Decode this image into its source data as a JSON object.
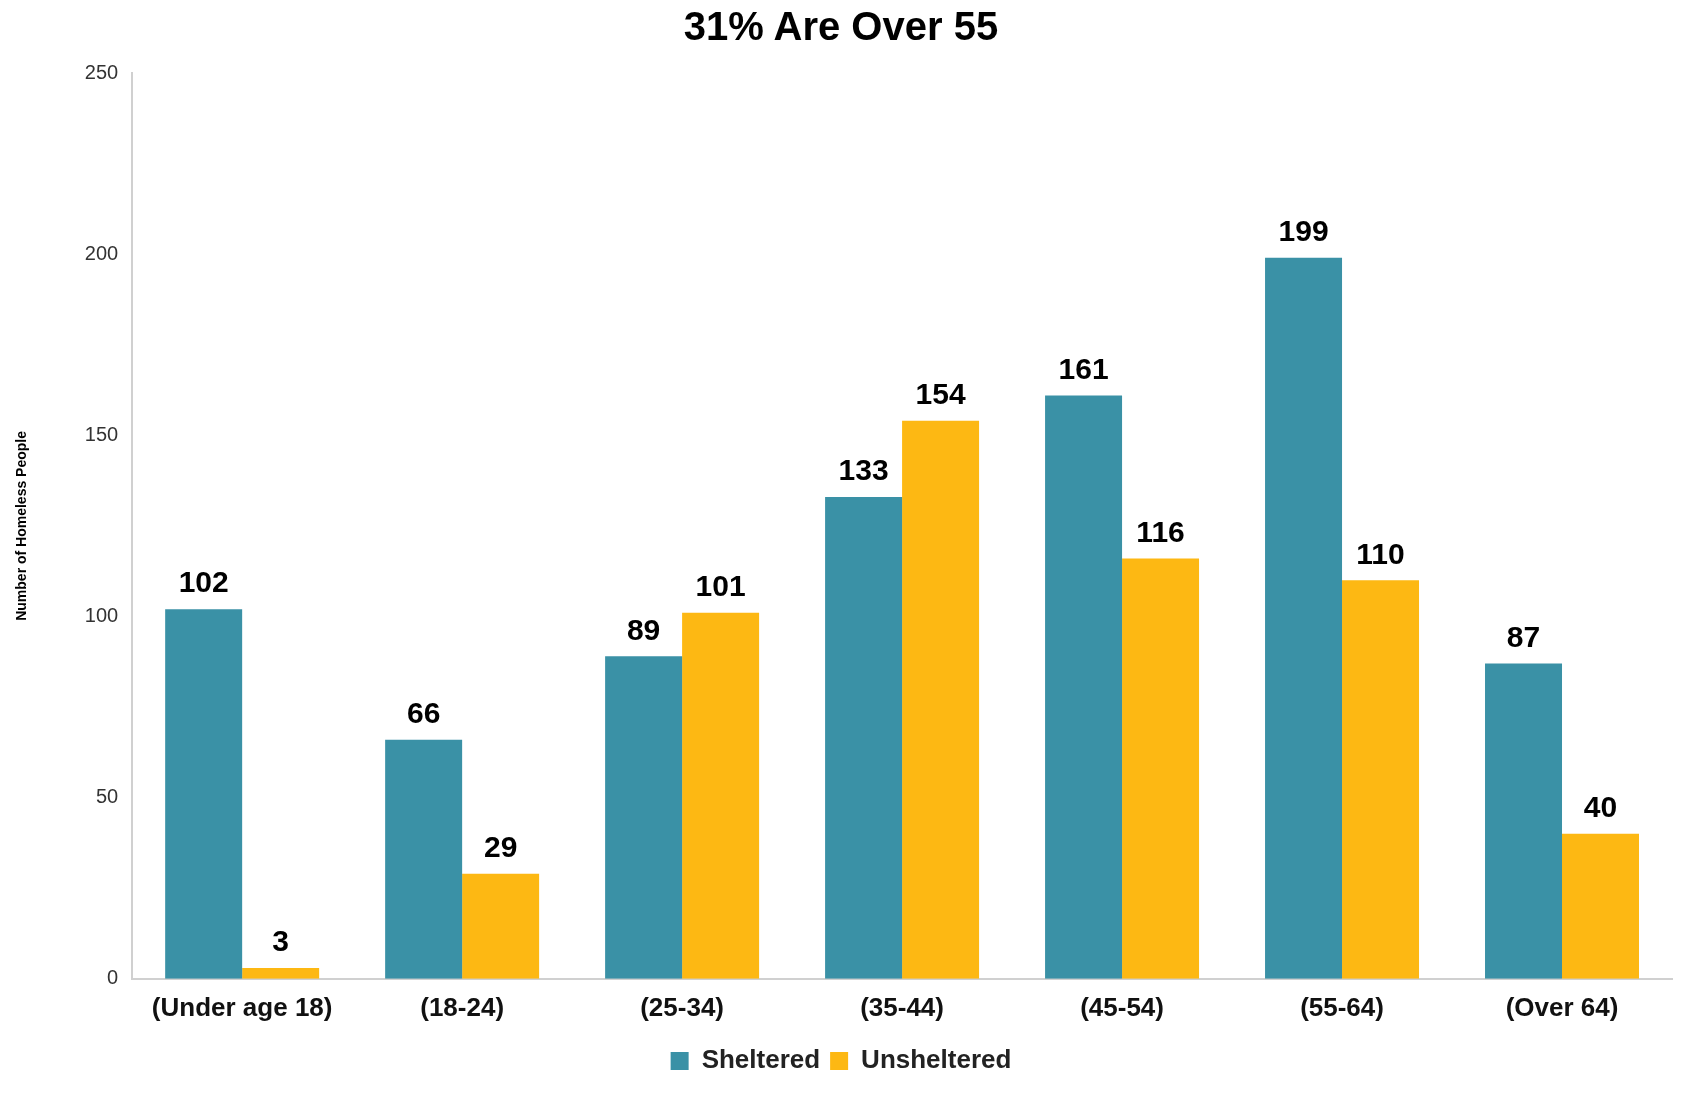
{
  "chart_data": {
    "type": "bar",
    "title": "31% Are Over 55",
    "ylabel": "Number of Homeless People",
    "categories": [
      "(Under age 18)",
      "(18-24)",
      "(25-34)",
      "(35-44)",
      "(45-54)",
      "(55-64)",
      "(Over 64)"
    ],
    "series": [
      {
        "name": "Sheltered",
        "color": "#3a91a6",
        "values": [
          102,
          66,
          89,
          133,
          161,
          199,
          87
        ]
      },
      {
        "name": "Unsheltered",
        "color": "#fdb813",
        "values": [
          3,
          29,
          101,
          154,
          116,
          110,
          40
        ]
      }
    ],
    "ylim": [
      0,
      250
    ],
    "yticks": [
      0,
      50,
      100,
      150,
      200,
      250
    ],
    "grid": false,
    "legend": "bottom",
    "data_labels": true
  }
}
